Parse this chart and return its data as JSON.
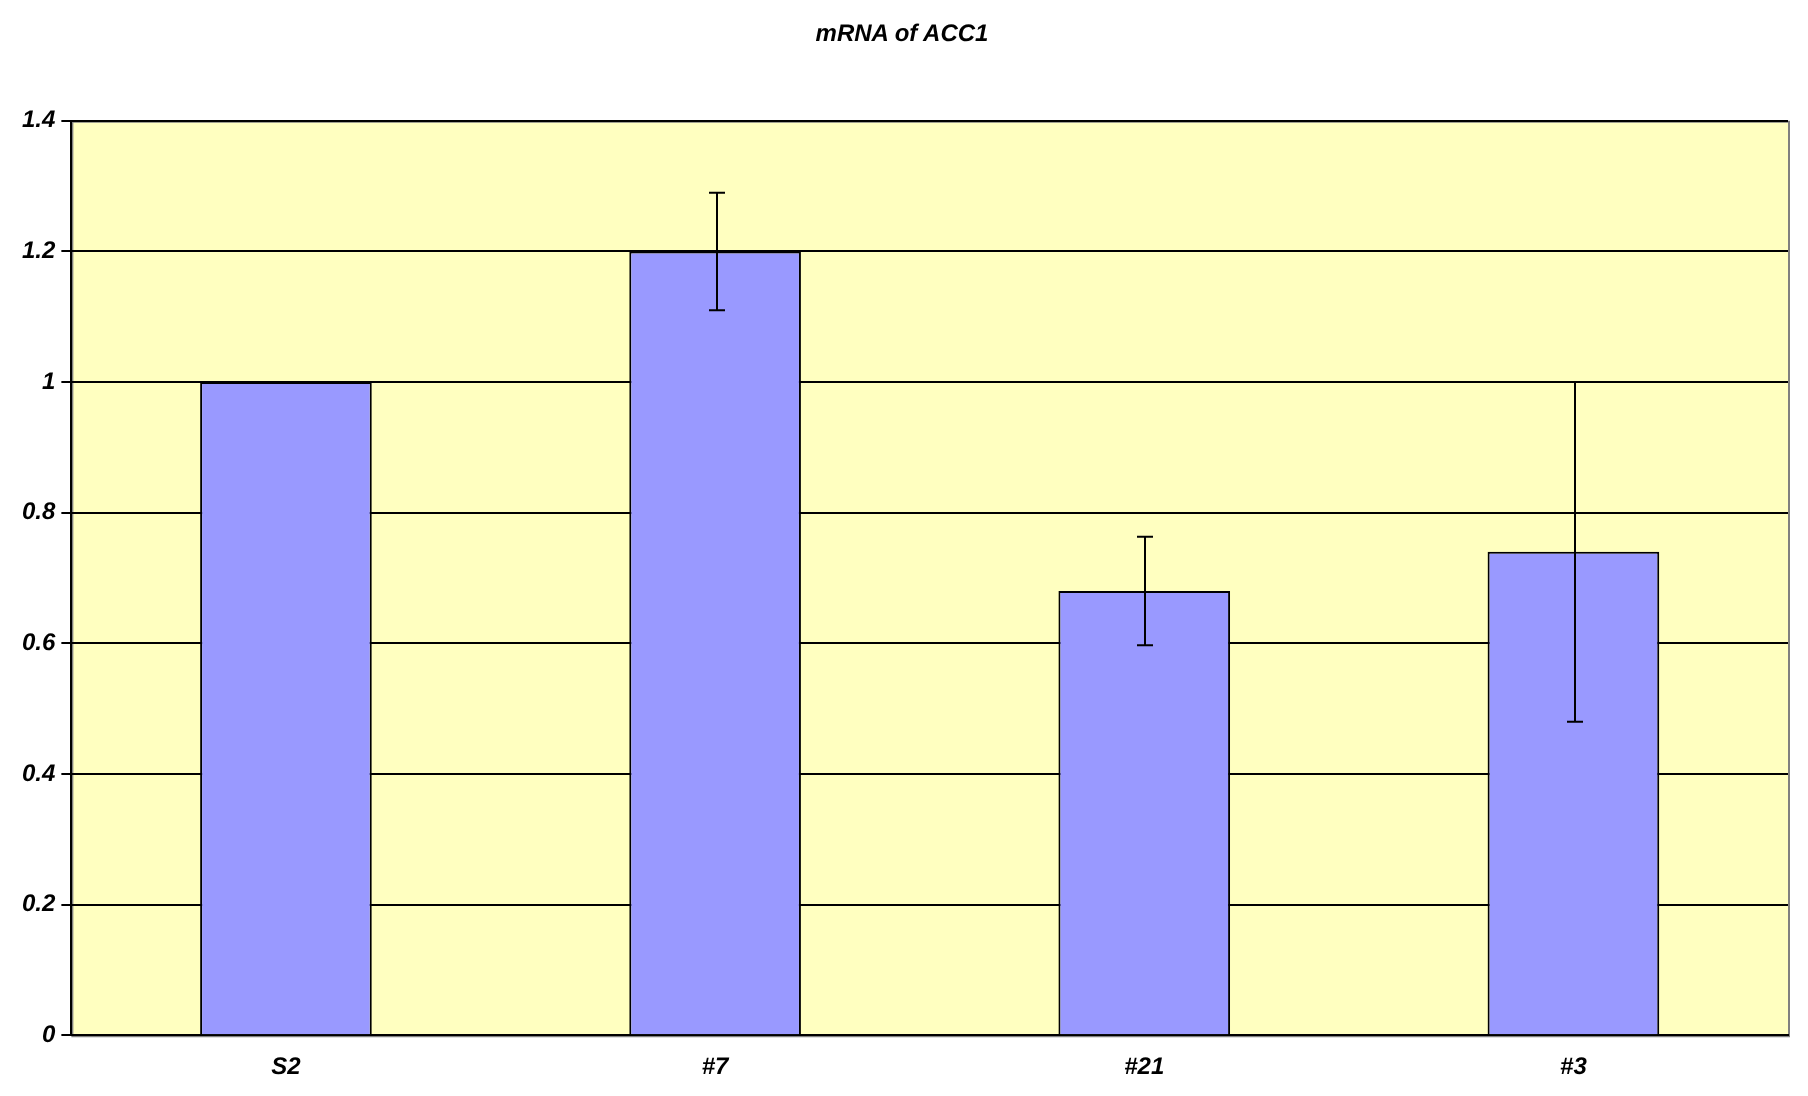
{
  "chart_data": {
    "type": "bar",
    "title": "mRNA of ACC1",
    "categories": [
      "S2",
      "#7",
      "#21",
      "#3"
    ],
    "values": [
      1.0,
      1.2,
      0.68,
      0.74
    ],
    "errors": [
      0,
      0.09,
      0.083,
      0.26
    ],
    "color": "#9999ff",
    "ylim": [
      0,
      1.4
    ],
    "yticks": [
      0,
      0.2,
      0.4,
      0.6,
      0.8,
      1,
      1.2,
      1.4
    ],
    "grid": "y",
    "legend": false
  }
}
